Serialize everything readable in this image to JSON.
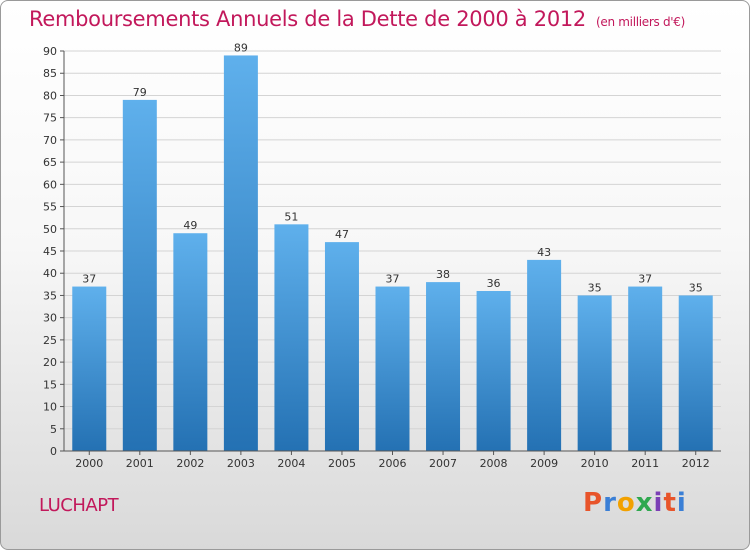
{
  "header": {
    "title": "Remboursements Annuels de la Dette de 2000 à 2012",
    "unit": "(en milliers d'€)"
  },
  "footer": {
    "commune": "LUCHAPT",
    "logo_text": "Proxiti",
    "logo_colors": [
      "#e8542a",
      "#3a7fd6",
      "#f2a100",
      "#2fa84f",
      "#7b3fb5",
      "#e8542a",
      "#3a7fd6"
    ]
  },
  "colors": {
    "title": "#c2185b",
    "bar_top": "#5fb0ec",
    "bar_bottom": "#2471b3",
    "axis": "#555555",
    "gridline": "#d4d4d4"
  },
  "chart_data": {
    "type": "bar",
    "title": "Remboursements Annuels de la Dette de 2000 à 2012",
    "subtitle": "(en milliers d'€)",
    "categories": [
      "2000",
      "2001",
      "2002",
      "2003",
      "2004",
      "2005",
      "2006",
      "2007",
      "2008",
      "2009",
      "2010",
      "2011",
      "2012"
    ],
    "values": [
      37,
      79,
      49,
      89,
      51,
      47,
      37,
      38,
      36,
      43,
      35,
      37,
      35
    ],
    "ylim": [
      0,
      90
    ],
    "yticks": [
      0,
      5,
      10,
      15,
      20,
      25,
      30,
      35,
      40,
      45,
      50,
      55,
      60,
      65,
      70,
      75,
      80,
      85,
      90
    ],
    "grid": true,
    "data_labels": true
  }
}
